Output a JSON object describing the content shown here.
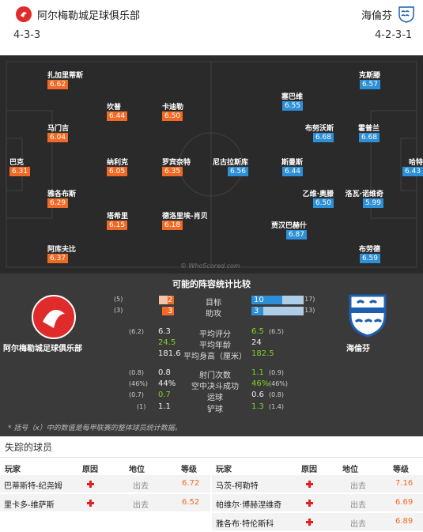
{
  "header": {
    "home_team": "阿尔梅勒城足球俱乐部",
    "away_team": "海倫芬",
    "home_formation": "4-3-3",
    "away_formation": "4-2-3-1"
  },
  "pitch": {
    "home_players": [
      {
        "name": "扎加里蒂斯",
        "rating": "6.62"
      },
      {
        "name": "坎普",
        "rating": "6.44"
      },
      {
        "name": "卡迪勒",
        "rating": "6.50"
      },
      {
        "name": "马门吉",
        "rating": "6.04"
      },
      {
        "name": "巴克",
        "rating": "6.31"
      },
      {
        "name": "纳利克",
        "rating": "6.05"
      },
      {
        "name": "罗宾奈特",
        "rating": "6.35"
      },
      {
        "name": "雅各布斯",
        "rating": "6.29"
      },
      {
        "name": "塔希里",
        "rating": "6.15"
      },
      {
        "name": "德洛里埃-肖贝",
        "rating": "6.18"
      },
      {
        "name": "阿库夫比",
        "rating": "6.37"
      }
    ],
    "away_players": [
      {
        "name": "克斯滕",
        "rating": "6.57"
      },
      {
        "name": "塞巴维",
        "rating": "6.55"
      },
      {
        "name": "布努沃斯",
        "rating": "6.68"
      },
      {
        "name": "霍普兰",
        "rating": "6.68"
      },
      {
        "name": "尼古拉斯库",
        "rating": "6.56"
      },
      {
        "name": "斯曼斯",
        "rating": "6.44"
      },
      {
        "name": "哈特",
        "rating": "6.43"
      },
      {
        "name": "乙维·奥滕",
        "rating": "6.50"
      },
      {
        "name": "洛瓦·诺维奇",
        "rating": "5.99"
      },
      {
        "name": "贾汉巴赫什",
        "rating": "6.87"
      },
      {
        "name": "布劳德",
        "rating": "6.59"
      }
    ],
    "watermark": "© WhoScored.com"
  },
  "compare": {
    "title": "可能的阵容统计比较",
    "home_label": "阿尔梅勒城足球俱乐部",
    "away_label": "海倫芬",
    "bars": [
      {
        "label": "目标",
        "home": "2",
        "home_season": "(5)",
        "away": "10",
        "away_season": "(17)"
      },
      {
        "label": "助攻",
        "home": "3",
        "home_season": "(3)",
        "away": "3",
        "away_season": "(13)"
      }
    ],
    "stats": [
      {
        "label": "平均评分",
        "home": "6.3",
        "home_season": "(6.2)",
        "away": "6.5",
        "away_season": "(6.5)",
        "winner": "away"
      },
      {
        "label": "平均年龄",
        "home": "24.5",
        "home_season": "",
        "away": "24",
        "away_season": "",
        "winner": "home"
      },
      {
        "label": "平均身高（厘米）",
        "home": "181.6",
        "home_season": "",
        "away": "182.5",
        "away_season": "",
        "winner": "away"
      },
      {
        "label": "射门次数",
        "home": "0.8",
        "home_season": "(0.8)",
        "away": "1.1",
        "away_season": "(0.9)",
        "winner": "away"
      },
      {
        "label": "空中决斗成功",
        "home": "44%",
        "home_season": "(46%)",
        "away": "46%",
        "away_season": "(46%)",
        "winner": "away"
      },
      {
        "label": "运球",
        "home": "0.7",
        "home_season": "(0.7)",
        "away": "0.6",
        "away_season": "(0.8)",
        "winner": "home"
      },
      {
        "label": "铲球",
        "home": "1.1",
        "home_season": "(1)",
        "away": "1.3",
        "away_season": "(1.4)",
        "winner": "away"
      }
    ],
    "footnote": "* 括号（x）中的数值是每甲联赛的整体球员统计数据。"
  },
  "missing": {
    "title": "失踪的球员",
    "headers": {
      "player": "玩家",
      "reason": "原因",
      "status": "地位",
      "rating": "等级"
    },
    "home": [
      {
        "name": "巴蒂斯特-纪尧姆",
        "status": "出去",
        "rating": "6.72"
      },
      {
        "name": "里卡多-维萨斯",
        "status": "出去",
        "rating": "6.52"
      }
    ],
    "away": [
      {
        "name": "马茨-柯勒特",
        "status": "出去",
        "rating": "7.16"
      },
      {
        "name": "帕维尔·博赫涅维奇",
        "status": "出去",
        "rating": "6.69"
      },
      {
        "name": "雅各布·特伦斯科",
        "status": "出去",
        "rating": "6.89"
      }
    ]
  },
  "colors": {
    "home": "#f06a25",
    "away": "#2d8fd6",
    "better": "#7ed321",
    "pitch": "#2a2a2a"
  }
}
